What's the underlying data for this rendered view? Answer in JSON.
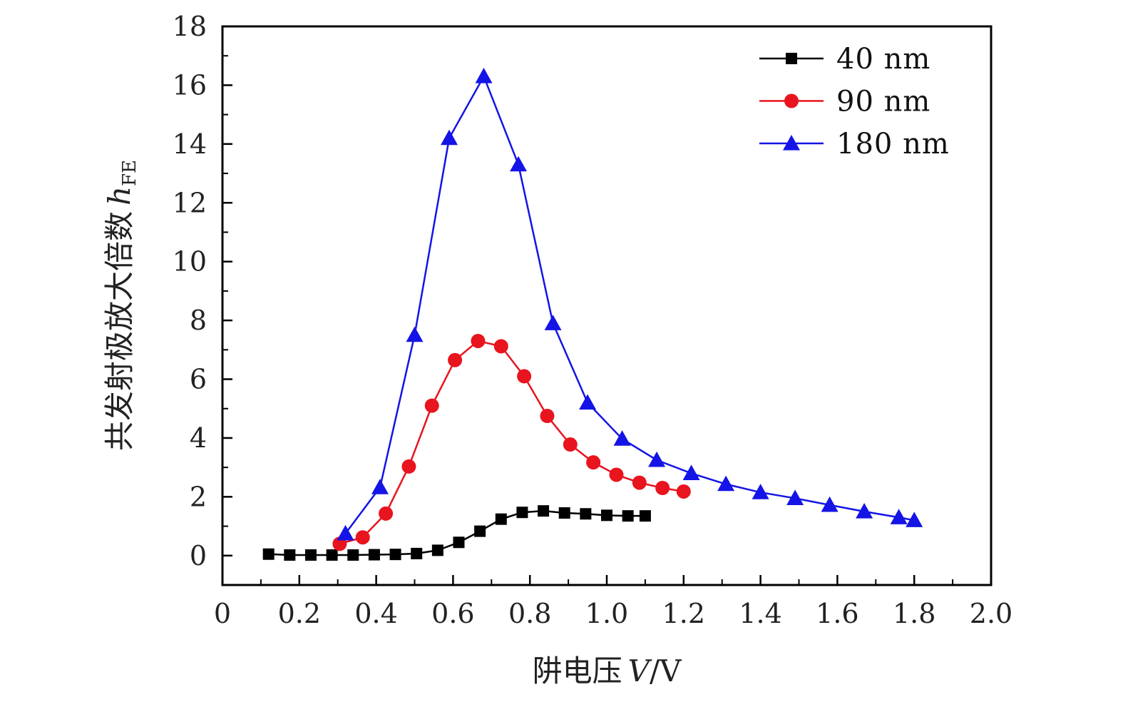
{
  "chart_data": {
    "type": "line",
    "title": "",
    "xlabel": {
      "prefix": "阱电压",
      "symbol": "V",
      "suffix": "/V"
    },
    "ylabel": {
      "prefix": "共发射极放大倍数",
      "symbol": "h",
      "subscript": "FE"
    },
    "xlim": [
      0,
      2.0
    ],
    "ylim": [
      -1,
      18
    ],
    "x_ticks": [
      {
        "value": 0,
        "label": "0"
      },
      {
        "value": 0.2,
        "label": "0.2"
      },
      {
        "value": 0.4,
        "label": "0.4"
      },
      {
        "value": 0.6,
        "label": "0.6"
      },
      {
        "value": 0.8,
        "label": "0.8"
      },
      {
        "value": 1.0,
        "label": "1.0"
      },
      {
        "value": 1.2,
        "label": "1.2"
      },
      {
        "value": 1.4,
        "label": "1.4"
      },
      {
        "value": 1.6,
        "label": "1.6"
      },
      {
        "value": 1.8,
        "label": "1.8"
      },
      {
        "value": 2.0,
        "label": "2.0"
      }
    ],
    "y_ticks": [
      {
        "value": 0,
        "label": "0"
      },
      {
        "value": 2,
        "label": "2"
      },
      {
        "value": 4,
        "label": "4"
      },
      {
        "value": 6,
        "label": "6"
      },
      {
        "value": 8,
        "label": "8"
      },
      {
        "value": 10,
        "label": "10"
      },
      {
        "value": 12,
        "label": "12"
      },
      {
        "value": 14,
        "label": "14"
      },
      {
        "value": 16,
        "label": "16"
      },
      {
        "value": 18,
        "label": "18"
      }
    ],
    "x_minor_step": 0.1,
    "y_minor_step": 1,
    "grid": false,
    "legend_position": "top-right",
    "series": [
      {
        "name": "40 nm",
        "color": "#000000",
        "marker": "square",
        "x": [
          0.12,
          0.175,
          0.23,
          0.285,
          0.34,
          0.395,
          0.45,
          0.505,
          0.56,
          0.615,
          0.67,
          0.725,
          0.78,
          0.835,
          0.89,
          0.945,
          1.0,
          1.055,
          1.1
        ],
        "y": [
          0.05,
          0.02,
          0.02,
          0.02,
          0.02,
          0.03,
          0.04,
          0.07,
          0.18,
          0.45,
          0.83,
          1.24,
          1.47,
          1.52,
          1.45,
          1.42,
          1.37,
          1.35,
          1.35
        ]
      },
      {
        "name": "90 nm",
        "color": "#e8141e",
        "marker": "circle",
        "x": [
          0.305,
          0.365,
          0.425,
          0.485,
          0.545,
          0.605,
          0.665,
          0.725,
          0.785,
          0.845,
          0.905,
          0.965,
          1.025,
          1.085,
          1.145,
          1.2
        ],
        "y": [
          0.4,
          0.62,
          1.43,
          3.03,
          5.1,
          6.65,
          7.3,
          7.12,
          6.1,
          4.75,
          3.78,
          3.17,
          2.75,
          2.48,
          2.3,
          2.18
        ]
      },
      {
        "name": "180 nm",
        "color": "#1414e6",
        "marker": "triangle",
        "x": [
          0.32,
          0.41,
          0.5,
          0.59,
          0.68,
          0.77,
          0.86,
          0.95,
          1.04,
          1.13,
          1.22,
          1.31,
          1.4,
          1.49,
          1.58,
          1.67,
          1.76,
          1.8
        ],
        "y": [
          0.75,
          2.32,
          7.5,
          14.2,
          16.3,
          13.3,
          7.9,
          5.2,
          3.97,
          3.25,
          2.8,
          2.43,
          2.15,
          1.95,
          1.72,
          1.5,
          1.3,
          1.2
        ]
      }
    ]
  }
}
